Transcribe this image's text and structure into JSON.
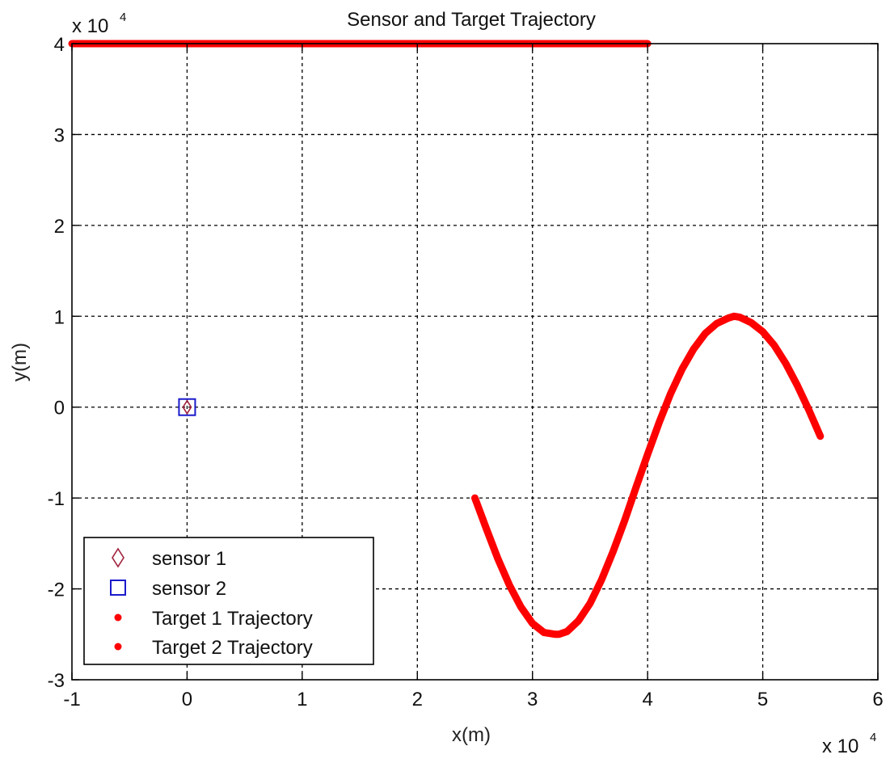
{
  "chart_data": {
    "type": "line",
    "title": "Sensor and Target Trajectory",
    "xlabel": "x(m)",
    "ylabel": "y(m)",
    "xlim": [
      -10000,
      60000
    ],
    "ylim": [
      -30000,
      40000
    ],
    "x_ticks": [
      -10000,
      0,
      10000,
      20000,
      30000,
      40000,
      50000,
      60000
    ],
    "y_ticks": [
      -30000,
      -20000,
      -10000,
      0,
      10000,
      20000,
      30000,
      40000
    ],
    "x_tick_labels": [
      "-1",
      "0",
      "1",
      "2",
      "3",
      "4",
      "5",
      "6"
    ],
    "y_tick_labels": [
      "-3",
      "-2",
      "-1",
      "0",
      "1",
      "2",
      "3",
      "4"
    ],
    "x_exponent_label": "x 10",
    "x_exponent_power": "4",
    "y_exponent_label": "x 10",
    "y_exponent_power": "4",
    "grid": true,
    "legend_position": "bottom-left",
    "series": [
      {
        "name": "sensor 1",
        "marker": "diamond",
        "color": "#a0203c",
        "x": [
          0
        ],
        "y": [
          0
        ]
      },
      {
        "name": "sensor 2",
        "marker": "square",
        "color": "#1a1acc",
        "x": [
          0
        ],
        "y": [
          0
        ]
      },
      {
        "name": "Target 1 Trajectory",
        "marker": "dot",
        "color": "#ff0000",
        "x": [
          -10000,
          40000
        ],
        "y": [
          40000,
          40000
        ]
      },
      {
        "name": "Target 2 Trajectory",
        "marker": "dot",
        "color": "#ff0000",
        "x": [
          25000,
          26000,
          27000,
          28000,
          29000,
          30000,
          31000,
          32000,
          32300,
          33000,
          34000,
          35000,
          36000,
          37000,
          38000,
          39000,
          40000,
          41000,
          42000,
          43000,
          44000,
          45000,
          46000,
          47000,
          47500,
          48000,
          49000,
          50000,
          51000,
          52000,
          53000,
          54000,
          55000
        ],
        "y": [
          -10000,
          -13400,
          -16700,
          -19600,
          -22000,
          -23800,
          -24800,
          -25000,
          -25000,
          -24700,
          -23500,
          -21600,
          -19000,
          -15900,
          -12500,
          -8800,
          -5200,
          -1700,
          1500,
          4200,
          6400,
          8100,
          9200,
          9800,
          10000,
          9900,
          9300,
          8300,
          6800,
          4800,
          2400,
          -300,
          -3200
        ]
      }
    ]
  }
}
